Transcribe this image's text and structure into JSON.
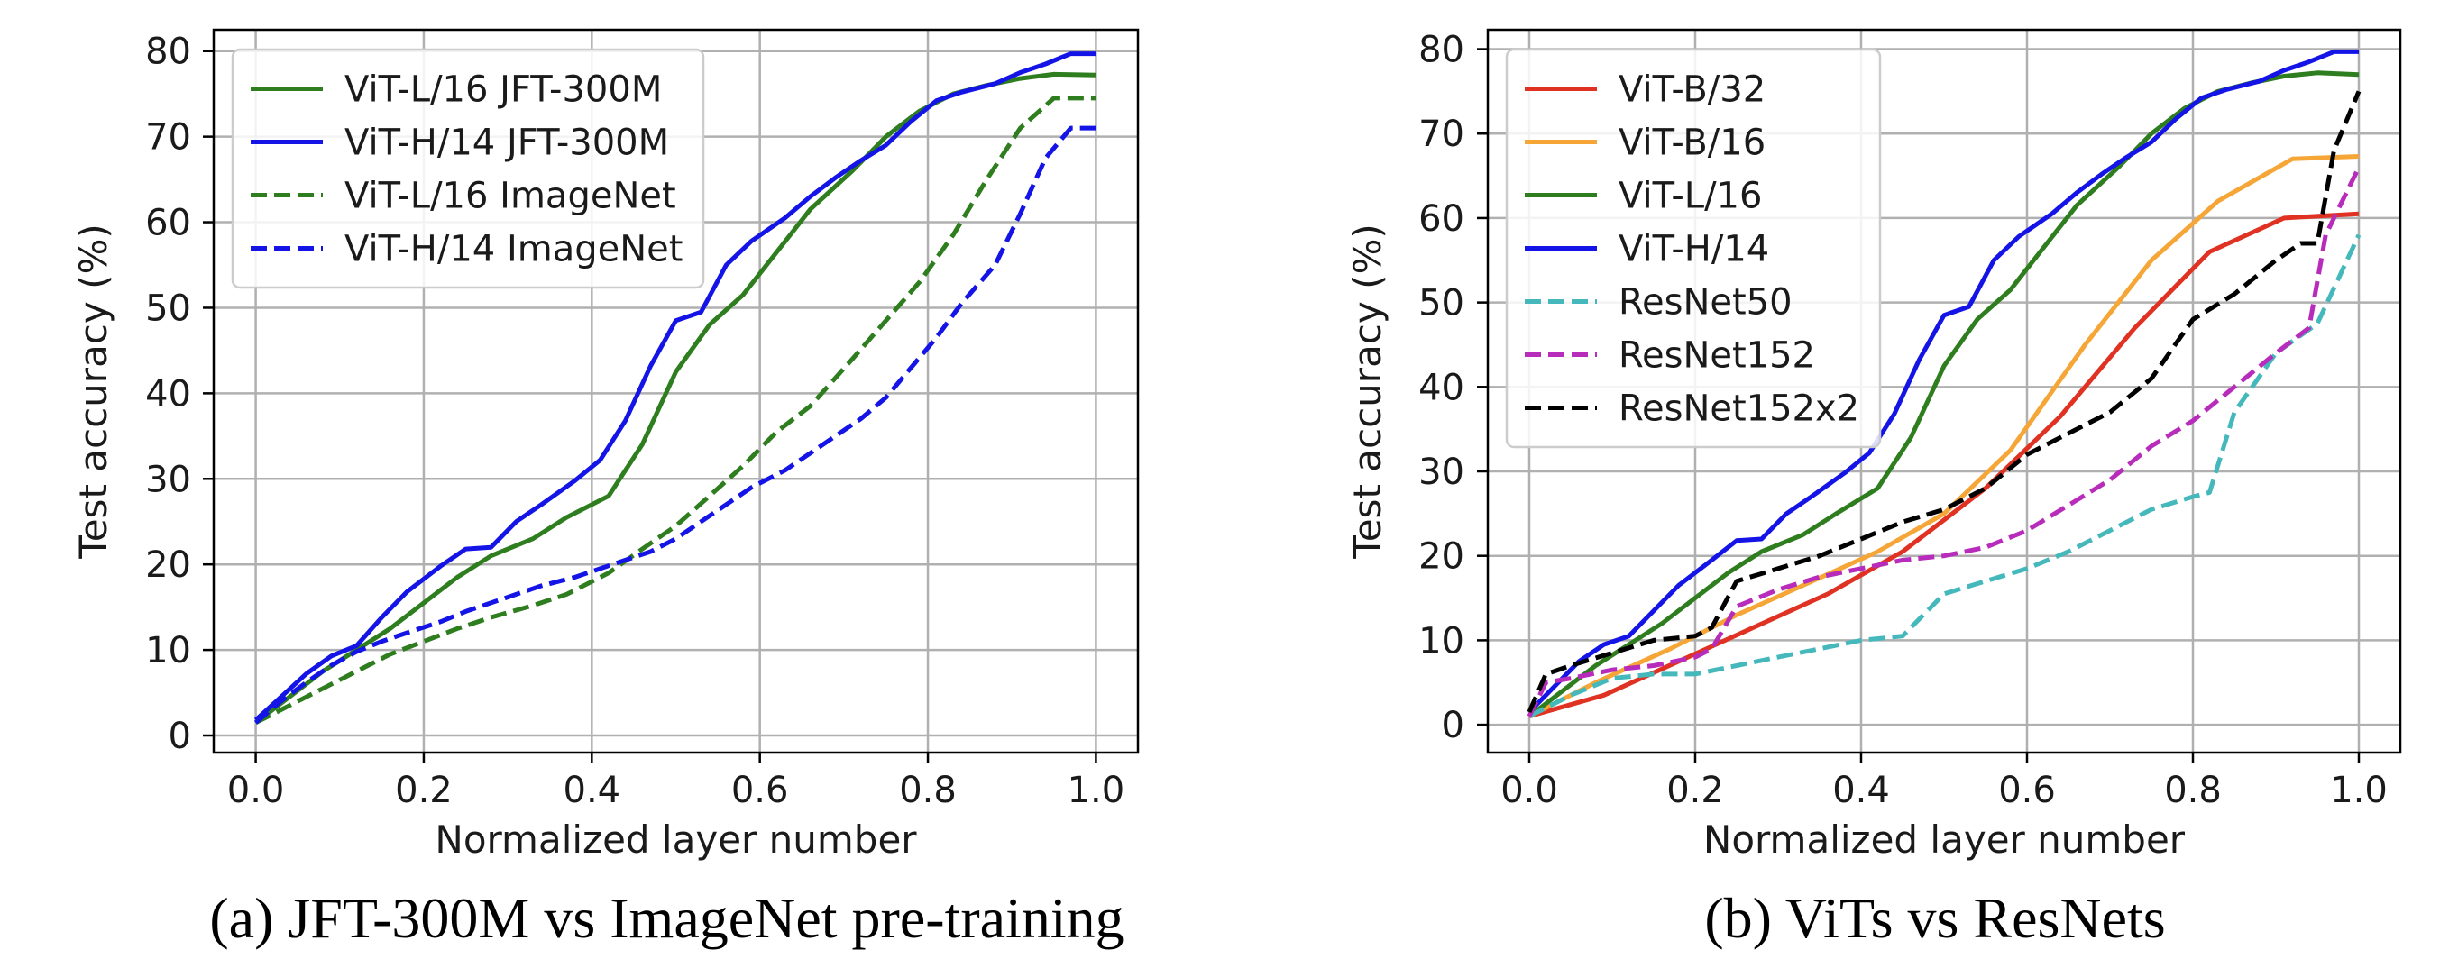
{
  "chart_data": [
    {
      "type": "line",
      "caption": "(a) JFT-300M vs ImageNet pre-training",
      "xlabel": "Normalized layer number",
      "ylabel": "Test accuracy (%)",
      "xlim": [
        -0.05,
        1.05
      ],
      "ylim": [
        -2,
        82.5
      ],
      "xticks": [
        0.0,
        0.2,
        0.4,
        0.6,
        0.8,
        1.0
      ],
      "xtick_labels": [
        "0.0",
        "0.2",
        "0.4",
        "0.6",
        "0.8",
        "1.0"
      ],
      "yticks": [
        0,
        10,
        20,
        30,
        40,
        50,
        60,
        70,
        80
      ],
      "ytick_labels": [
        "0",
        "10",
        "20",
        "30",
        "40",
        "50",
        "60",
        "70",
        "80"
      ],
      "grid": true,
      "legend_position": "upper-left",
      "series": [
        {
          "name": "ViT-L/16 JFT-300M",
          "color": "#2e7d1e",
          "dash": "solid",
          "x": [
            0.0,
            0.04,
            0.08,
            0.12,
            0.16,
            0.2,
            0.24,
            0.28,
            0.33,
            0.37,
            0.42,
            0.46,
            0.5,
            0.54,
            0.58,
            0.62,
            0.66,
            0.71,
            0.75,
            0.79,
            0.83,
            0.87,
            0.91,
            0.95,
            1.0
          ],
          "y": [
            1.5,
            4.5,
            7.5,
            10,
            12.5,
            15.5,
            18.5,
            21,
            23,
            25.5,
            28,
            34,
            42.5,
            48,
            51.5,
            56.5,
            61.5,
            66,
            70,
            73,
            75,
            76,
            76.8,
            77.3,
            77.2
          ]
        },
        {
          "name": "ViT-H/14 JFT-300M",
          "color": "#1414e6",
          "dash": "solid",
          "x": [
            0.0,
            0.03,
            0.06,
            0.09,
            0.12,
            0.15,
            0.18,
            0.22,
            0.25,
            0.28,
            0.31,
            0.34,
            0.38,
            0.41,
            0.44,
            0.47,
            0.5,
            0.53,
            0.56,
            0.59,
            0.63,
            0.66,
            0.69,
            0.72,
            0.75,
            0.78,
            0.81,
            0.84,
            0.88,
            0.91,
            0.94,
            0.97,
            1.0
          ],
          "y": [
            1.8,
            4.5,
            7.2,
            9.3,
            10.5,
            13.8,
            16.8,
            19.8,
            21.8,
            22.0,
            25.0,
            27.0,
            29.8,
            32.2,
            36.8,
            43.2,
            48.5,
            49.5,
            55.0,
            57.8,
            60.5,
            63.0,
            65.2,
            67.2,
            69.0,
            71.8,
            74.2,
            75.2,
            76.2,
            77.5,
            78.5,
            79.7,
            79.7
          ]
        },
        {
          "name": "ViT-L/16 ImageNet",
          "color": "#2e7d1e",
          "dash": "dashed",
          "x": [
            0.0,
            0.04,
            0.08,
            0.12,
            0.16,
            0.2,
            0.24,
            0.28,
            0.33,
            0.37,
            0.42,
            0.46,
            0.5,
            0.54,
            0.58,
            0.62,
            0.66,
            0.71,
            0.75,
            0.79,
            0.83,
            0.87,
            0.91,
            0.95,
            1.0
          ],
          "y": [
            1.5,
            3.5,
            5.5,
            7.5,
            9.5,
            11,
            12.5,
            13.8,
            15.2,
            16.5,
            19,
            21.8,
            24.5,
            28,
            31.5,
            35.5,
            38.5,
            44,
            48.5,
            53,
            58.5,
            65,
            71,
            74.5,
            74.5
          ]
        },
        {
          "name": "ViT-H/14 ImageNet",
          "color": "#1414e6",
          "dash": "dashed",
          "x": [
            0.0,
            0.03,
            0.06,
            0.09,
            0.12,
            0.15,
            0.18,
            0.22,
            0.25,
            0.28,
            0.31,
            0.34,
            0.38,
            0.41,
            0.44,
            0.47,
            0.5,
            0.53,
            0.56,
            0.59,
            0.63,
            0.66,
            0.69,
            0.72,
            0.75,
            0.78,
            0.81,
            0.84,
            0.88,
            0.91,
            0.94,
            0.97,
            1.0
          ],
          "y": [
            1.5,
            4.0,
            6.2,
            8.2,
            9.8,
            11.0,
            12.0,
            13.3,
            14.5,
            15.5,
            16.5,
            17.5,
            18.5,
            19.5,
            20.5,
            21.5,
            23.0,
            25.0,
            27.0,
            29.0,
            31.0,
            33.0,
            35.0,
            37.0,
            39.5,
            43.0,
            46.5,
            50.5,
            55.0,
            61.0,
            67.5,
            71.0,
            71.0
          ]
        }
      ]
    },
    {
      "type": "line",
      "caption": "(b) ViTs vs ResNets",
      "xlabel": "Normalized layer number",
      "ylabel": "Test accuracy (%)",
      "xlim": [
        -0.05,
        1.05
      ],
      "ylim": [
        -3.3,
        82.3
      ],
      "xticks": [
        0.0,
        0.2,
        0.4,
        0.6,
        0.8,
        1.0
      ],
      "xtick_labels": [
        "0.0",
        "0.2",
        "0.4",
        "0.6",
        "0.8",
        "1.0"
      ],
      "yticks": [
        0,
        10,
        20,
        30,
        40,
        50,
        60,
        70,
        80
      ],
      "ytick_labels": [
        "0",
        "10",
        "20",
        "30",
        "40",
        "50",
        "60",
        "70",
        "80"
      ],
      "grid": true,
      "legend_position": "upper-left",
      "series": [
        {
          "name": "ViT-B/32",
          "color": "#e03222",
          "dash": "solid",
          "x": [
            0.0,
            0.09,
            0.18,
            0.27,
            0.36,
            0.45,
            0.55,
            0.64,
            0.73,
            0.82,
            0.91,
            1.0
          ],
          "y": [
            1.0,
            3.5,
            7.5,
            11.5,
            15.5,
            20.5,
            28.0,
            36.5,
            47.0,
            56.0,
            60.0,
            60.5
          ]
        },
        {
          "name": "ViT-B/16",
          "color": "#f5a637",
          "dash": "solid",
          "x": [
            0.0,
            0.08,
            0.17,
            0.25,
            0.33,
            0.42,
            0.5,
            0.58,
            0.67,
            0.75,
            0.83,
            0.92,
            1.0
          ],
          "y": [
            1.0,
            5.0,
            9.0,
            13.0,
            16.5,
            20.5,
            25.0,
            32.5,
            45.0,
            55.0,
            62.0,
            67.0,
            67.3
          ]
        },
        {
          "name": "ViT-L/16",
          "color": "#2e7d1e",
          "dash": "solid",
          "x": [
            0.0,
            0.04,
            0.08,
            0.12,
            0.16,
            0.2,
            0.24,
            0.28,
            0.33,
            0.37,
            0.42,
            0.46,
            0.5,
            0.54,
            0.58,
            0.62,
            0.66,
            0.71,
            0.75,
            0.79,
            0.83,
            0.87,
            0.91,
            0.95,
            1.0
          ],
          "y": [
            1.0,
            4.0,
            7.0,
            9.5,
            12.0,
            15.0,
            18.0,
            20.5,
            22.5,
            25.0,
            28.0,
            34.0,
            42.5,
            48.0,
            51.5,
            56.5,
            61.5,
            66.0,
            70.0,
            73.0,
            75.0,
            76.0,
            76.8,
            77.2,
            77.0
          ]
        },
        {
          "name": "ViT-H/14",
          "color": "#1414e6",
          "dash": "solid",
          "x": [
            0.0,
            0.03,
            0.06,
            0.09,
            0.12,
            0.15,
            0.18,
            0.22,
            0.25,
            0.28,
            0.31,
            0.34,
            0.38,
            0.41,
            0.44,
            0.47,
            0.5,
            0.53,
            0.56,
            0.59,
            0.63,
            0.66,
            0.69,
            0.72,
            0.75,
            0.78,
            0.81,
            0.84,
            0.88,
            0.91,
            0.94,
            0.97,
            1.0
          ],
          "y": [
            1.5,
            4.5,
            7.5,
            9.5,
            10.5,
            13.5,
            16.5,
            19.5,
            21.8,
            22.0,
            25.0,
            27.0,
            29.8,
            32.2,
            36.8,
            43.2,
            48.5,
            49.5,
            55.0,
            57.8,
            60.5,
            63.0,
            65.2,
            67.2,
            69.0,
            71.8,
            74.2,
            75.2,
            76.2,
            77.5,
            78.5,
            79.7,
            79.7
          ]
        },
        {
          "name": "ResNet50",
          "color": "#45b8bc",
          "dash": "dashed",
          "x": [
            0.0,
            0.05,
            0.1,
            0.15,
            0.2,
            0.25,
            0.3,
            0.35,
            0.4,
            0.45,
            0.5,
            0.55,
            0.6,
            0.65,
            0.7,
            0.75,
            0.8,
            0.82,
            0.85,
            0.9,
            0.95,
            1.0
          ],
          "y": [
            1.0,
            3.5,
            5.5,
            6.0,
            6.0,
            7.0,
            8.0,
            9.0,
            10.0,
            10.5,
            15.5,
            17.0,
            18.5,
            20.5,
            23.0,
            25.5,
            27.0,
            27.5,
            37.0,
            44.0,
            47.5,
            58.0
          ]
        },
        {
          "name": "ResNet152",
          "color": "#b72cba",
          "dash": "dashed",
          "x": [
            0.0,
            0.02,
            0.05,
            0.1,
            0.15,
            0.2,
            0.22,
            0.25,
            0.3,
            0.35,
            0.4,
            0.45,
            0.5,
            0.55,
            0.6,
            0.65,
            0.7,
            0.75,
            0.8,
            0.85,
            0.9,
            0.94,
            0.96,
            1.0
          ],
          "y": [
            1.0,
            5.0,
            5.5,
            6.5,
            7.0,
            8.0,
            9.0,
            14.0,
            16.0,
            17.5,
            18.5,
            19.5,
            20.0,
            21.0,
            23.0,
            26.0,
            29.0,
            33.0,
            36.0,
            40.0,
            44.0,
            47.0,
            58.0,
            66.0
          ]
        },
        {
          "name": "ResNet152x2",
          "color": "#000000",
          "dash": "dashed",
          "x": [
            0.0,
            0.02,
            0.05,
            0.1,
            0.15,
            0.2,
            0.22,
            0.25,
            0.3,
            0.35,
            0.4,
            0.45,
            0.5,
            0.55,
            0.6,
            0.65,
            0.7,
            0.75,
            0.8,
            0.85,
            0.9,
            0.93,
            0.95,
            0.97,
            1.0
          ],
          "y": [
            1.5,
            6.0,
            7.0,
            8.5,
            10.0,
            10.5,
            11.5,
            17.0,
            18.5,
            20.0,
            22.0,
            24.0,
            25.5,
            28.0,
            32.0,
            34.5,
            37.0,
            41.0,
            48.0,
            51.0,
            55.0,
            57.0,
            57.0,
            68.0,
            75.0
          ]
        }
      ]
    }
  ]
}
